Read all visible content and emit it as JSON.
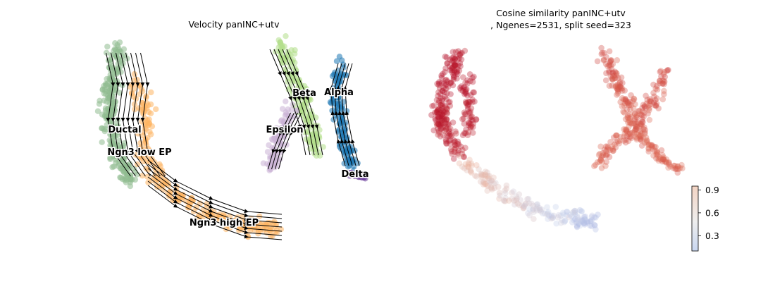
{
  "chart_data": [
    {
      "type": "scatter",
      "subtype": "umap-velocity-stream",
      "title": "Velocity panINC+utv",
      "xlabel": "",
      "ylabel": "",
      "axes": "off",
      "grid": false,
      "clusters": [
        {
          "name": "Ductal",
          "color": "#8fbc8f"
        },
        {
          "name": "Ngn3 low EP",
          "color": "#8fbc8f"
        },
        {
          "name": "Ngn3 high EP",
          "color": "#fdb462"
        },
        {
          "name": "Beta",
          "color": "#b2df8a"
        },
        {
          "name": "Alpha",
          "color": "#1f78b4"
        },
        {
          "name": "Epsilon",
          "color": "#cab2d6"
        },
        {
          "name": "Delta",
          "color": "#6a3d9a"
        }
      ]
    },
    {
      "type": "scatter",
      "subtype": "umap-colored-by-value",
      "title_line1": "Cosine similarity panINC+utv",
      "title_line2": ", Ngenes=2531, split seed=323",
      "xlabel": "",
      "ylabel": "",
      "axes": "off",
      "grid": false,
      "colormap": "coolwarm",
      "colorbar": {
        "ticks": [
          0.9,
          0.6,
          0.3
        ],
        "tick_labels": [
          "0.9",
          "0.6",
          "0.3"
        ],
        "range": [
          0.1,
          0.95
        ]
      },
      "value_summary": {
        "left_arm_top": 0.95,
        "left_arm_bottom": 0.9,
        "bottom_tail": 0.55,
        "tail_tip": 0.35,
        "right_upper_arm": 0.8,
        "right_lower_arm": 0.75
      }
    }
  ]
}
